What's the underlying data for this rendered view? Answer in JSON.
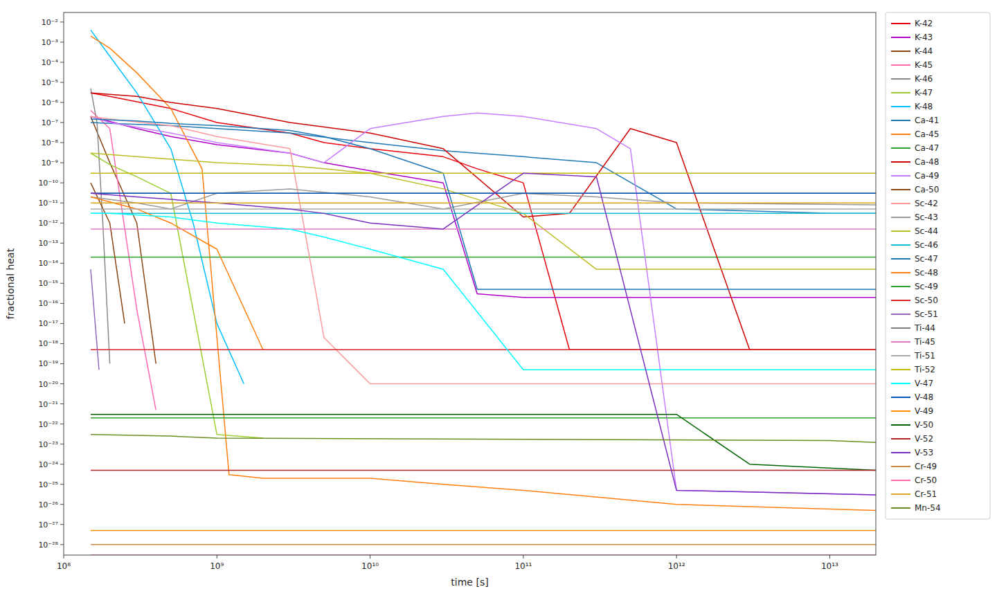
{
  "chart_data": {
    "type": "line",
    "xlabel": "time [s]",
    "ylabel": "fractional heat",
    "log": true,
    "grid": false,
    "legend": "right",
    "xlim": [
      100000000.0,
      20000000000000.0
    ],
    "ylim": [
      3e-29,
      0.03
    ],
    "xticks": [
      {
        "value": 100000000.0,
        "label": "10⁸"
      },
      {
        "value": 1000000000.0,
        "label": "10⁹"
      },
      {
        "value": 10000000000.0,
        "label": "10¹⁰"
      },
      {
        "value": 100000000000.0,
        "label": "10¹¹"
      },
      {
        "value": 1000000000000.0,
        "label": "10¹²"
      },
      {
        "value": 10000000000000.0,
        "label": "10¹³"
      }
    ],
    "yticks": [
      {
        "value": 1e-28,
        "label": "10⁻²⁸"
      },
      {
        "value": 1e-27,
        "label": "10⁻²⁷"
      },
      {
        "value": 1e-26,
        "label": "10⁻²⁶"
      },
      {
        "value": 1e-25,
        "label": "10⁻²⁵"
      },
      {
        "value": 1e-24,
        "label": "10⁻²⁴"
      },
      {
        "value": 1e-23,
        "label": "10⁻²³"
      },
      {
        "value": 1e-22,
        "label": "10⁻²²"
      },
      {
        "value": 1e-21,
        "label": "10⁻²¹"
      },
      {
        "value": 1e-20,
        "label": "10⁻²⁰"
      },
      {
        "value": 1e-19,
        "label": "10⁻¹⁹"
      },
      {
        "value": 1e-18,
        "label": "10⁻¹⁸"
      },
      {
        "value": 1e-17,
        "label": "10⁻¹⁷"
      },
      {
        "value": 1e-16,
        "label": "10⁻¹⁶"
      },
      {
        "value": 1e-15,
        "label": "10⁻¹⁵"
      },
      {
        "value": 1e-14,
        "label": "10⁻¹⁴"
      },
      {
        "value": 1e-13,
        "label": "10⁻¹³"
      },
      {
        "value": 1e-12,
        "label": "10⁻¹²"
      },
      {
        "value": 1e-11,
        "label": "10⁻¹¹"
      },
      {
        "value": 1e-10,
        "label": "10⁻¹⁰"
      },
      {
        "value": 1e-09,
        "label": "10⁻⁹"
      },
      {
        "value": 1e-08,
        "label": "10⁻⁸"
      },
      {
        "value": 1e-07,
        "label": "10⁻⁷"
      },
      {
        "value": 1e-06,
        "label": "10⁻⁶"
      },
      {
        "value": 1e-05,
        "label": "10⁻⁵"
      },
      {
        "value": 0.0001,
        "label": "10⁻⁴"
      },
      {
        "value": 0.001,
        "label": "10⁻³"
      },
      {
        "value": 0.01,
        "label": "10⁻²"
      }
    ],
    "series": [
      {
        "name": "K-42",
        "color": "#e8000d",
        "x": [
          150000000.0,
          200000000.0,
          500000000.0,
          1000000000.0,
          3000000000.0,
          5000000000.0,
          10000000000.0,
          30000000000.0,
          50000000000.0,
          100000000000.0,
          200000000000.0,
          20000000000000.0
        ],
        "values": [
          3e-06,
          2e-06,
          5e-07,
          1e-07,
          3e-08,
          1e-08,
          5e-09,
          2e-09,
          5e-10,
          1e-10,
          5e-19,
          5e-19
        ]
      },
      {
        "name": "K-43",
        "color": "#b000c8",
        "x": [
          150000000.0,
          300000000.0,
          500000000.0,
          1000000000.0,
          3000000000.0,
          5000000000.0,
          10000000000.0,
          30000000000.0,
          50000000000.0,
          100000000000.0,
          20000000000000.0
        ],
        "values": [
          2e-07,
          5e-08,
          2e-08,
          8e-09,
          3e-09,
          1e-09,
          4e-10,
          1e-10,
          3e-16,
          2e-16,
          2e-16
        ]
      },
      {
        "name": "K-44",
        "color": "#8b4513",
        "x": [
          150000000.0,
          200000000.0,
          300000000.0,
          400000000.0
        ],
        "values": [
          2e-07,
          1e-09,
          1e-12,
          1e-19
        ]
      },
      {
        "name": "K-45",
        "color": "#ff69b4",
        "x": [
          150000000.0,
          200000000.0,
          300000000.0,
          400000000.0
        ],
        "values": [
          4e-07,
          5e-08,
          5e-17,
          5e-22
        ]
      },
      {
        "name": "K-46",
        "color": "#888888",
        "x": [
          150000000.0,
          165000000.0,
          180000000.0,
          200000000.0
        ],
        "values": [
          5e-06,
          1e-07,
          1e-12,
          1e-19
        ]
      },
      {
        "name": "K-47",
        "color": "#9acd32",
        "x": [
          150000000.0,
          200000000.0,
          300000000.0,
          500000000.0,
          1000000000.0,
          2000000000.0
        ],
        "values": [
          3e-09,
          8e-10,
          2e-10,
          3e-11,
          3e-23,
          2e-23
        ]
      },
      {
        "name": "K-48",
        "color": "#00bfff",
        "x": [
          150000000.0,
          200000000.0,
          300000000.0,
          500000000.0,
          700000000.0,
          1000000000.0,
          1500000000.0
        ],
        "values": [
          0.004,
          0.0002,
          3e-06,
          5e-09,
          1e-12,
          1e-17,
          1e-20
        ]
      },
      {
        "name": "Ca-41",
        "color": "#1f77b4",
        "x": [
          150000000.0,
          200000000.0,
          500000000.0,
          1000000000.0,
          3000000000.0,
          10000000000.0,
          30000000000.0,
          100000000000.0,
          300000000000.0,
          1000000000000.0,
          3000000000000.0,
          10000000000000.0,
          20000000000000.0
        ],
        "values": [
          1e-07,
          9e-08,
          7e-08,
          5e-08,
          3e-08,
          1e-08,
          4e-09,
          2e-09,
          1e-09,
          5e-12,
          4e-12,
          3e-12,
          3e-12
        ]
      },
      {
        "name": "Ca-45",
        "color": "#ff7f0e",
        "x": [
          150000000.0,
          200000000.0,
          300000000.0,
          500000000.0,
          800000000.0,
          1200000000.0,
          2000000000.0,
          10000000000.0,
          30000000000.0,
          100000000000.0,
          1000000000000.0,
          20000000000000.0
        ],
        "values": [
          0.002,
          0.0005,
          3e-05,
          5e-07,
          5e-10,
          3e-25,
          2e-25,
          2e-25,
          1e-25,
          5e-26,
          1e-26,
          5e-27
        ]
      },
      {
        "name": "Ca-47",
        "color": "#2ca02c",
        "x": [
          150000000.0,
          20000000000000.0
        ],
        "values": [
          2e-14,
          2e-14
        ]
      },
      {
        "name": "Ca-48",
        "color": "#cc0000",
        "x": [
          150000000.0,
          300000000.0,
          500000000.0,
          1000000000.0,
          3000000000.0,
          10000000000.0,
          30000000000.0,
          100000000000.0,
          200000000000.0,
          500000000000.0,
          1000000000000.0,
          3000000000000.0,
          20000000000000.0
        ],
        "values": [
          3e-06,
          2e-06,
          1e-06,
          5e-07,
          1e-07,
          3e-08,
          5e-09,
          2e-12,
          3e-12,
          5e-08,
          1e-08,
          5e-19,
          5e-19
        ]
      },
      {
        "name": "Ca-49",
        "color": "#c77cff",
        "x": [
          150000000.0,
          200000000.0,
          500000000.0,
          1000000000.0,
          3000000000.0,
          5000000000.0,
          10000000000.0,
          30000000000.0,
          50000000000.0,
          100000000000.0,
          300000000000.0,
          500000000000.0,
          1000000000000.0,
          20000000000000.0
        ],
        "values": [
          2e-07,
          1e-07,
          3e-08,
          1e-08,
          3e-09,
          1e-09,
          5e-08,
          2e-07,
          3e-07,
          2e-07,
          5e-08,
          5e-09,
          5e-26,
          3e-26
        ]
      },
      {
        "name": "Ca-50",
        "color": "#8b4513",
        "x": [
          150000000.0,
          200000000.0,
          250000000.0
        ],
        "values": [
          1e-10,
          1e-12,
          1e-17
        ]
      },
      {
        "name": "Sc-42",
        "color": "#ff9999",
        "x": [
          150000000.0,
          200000000.0,
          500000000.0,
          1000000000.0,
          3000000000.0,
          5000000000.0,
          10000000000.0,
          20000000000000.0
        ],
        "values": [
          2e-07,
          1.5e-07,
          7e-08,
          2e-08,
          5e-09,
          2e-18,
          1e-20,
          1e-20
        ]
      },
      {
        "name": "Sc-43",
        "color": "#999999",
        "x": [
          150000000.0,
          300000000.0,
          500000000.0,
          1000000000.0,
          3000000000.0,
          10000000000.0,
          30000000000.0,
          100000000000.0,
          300000000000.0,
          1000000000000.0,
          20000000000000.0
        ],
        "values": [
          2e-11,
          1e-11,
          5e-12,
          3e-11,
          5e-11,
          2e-11,
          5e-12,
          3e-11,
          2e-11,
          1e-11,
          8e-12
        ]
      },
      {
        "name": "Sc-44",
        "color": "#bcbd22",
        "x": [
          150000000.0,
          300000000.0,
          500000000.0,
          1000000000.0,
          3000000000.0,
          5000000000.0,
          10000000000.0,
          30000000000.0,
          100000000000.0,
          300000000000.0,
          20000000000000.0
        ],
        "values": [
          3e-09,
          2e-09,
          1.5e-09,
          1e-09,
          7e-10,
          5e-10,
          3e-10,
          5e-11,
          3e-12,
          5e-15,
          5e-15
        ]
      },
      {
        "name": "Sc-46",
        "color": "#17becf",
        "x": [
          150000000.0,
          20000000000000.0
        ],
        "values": [
          3e-12,
          3e-12
        ]
      },
      {
        "name": "Sc-47",
        "color": "#1f77b4",
        "x": [
          150000000.0,
          300000000.0,
          500000000.0,
          1000000000.0,
          3000000000.0,
          5000000000.0,
          10000000000.0,
          30000000000.0,
          50000000000.0,
          20000000000000.0
        ],
        "values": [
          1.5e-07,
          1.2e-07,
          9e-08,
          7e-08,
          4e-08,
          2e-08,
          5e-09,
          3e-10,
          5e-16,
          5e-16
        ]
      },
      {
        "name": "Sc-48",
        "color": "#ff7f0e",
        "x": [
          150000000.0,
          300000000.0,
          500000000.0,
          1000000000.0,
          2000000000.0
        ],
        "values": [
          2e-11,
          5e-12,
          1e-12,
          5e-14,
          5e-19
        ]
      },
      {
        "name": "Sc-49",
        "color": "#2ca02c",
        "x": [
          150000000.0,
          20000000000000.0
        ],
        "values": [
          2e-22,
          2e-22
        ]
      },
      {
        "name": "Sc-50",
        "color": "#d62728",
        "x": [
          150000000.0,
          20000000000000.0
        ],
        "values": [
          5e-19,
          5e-19
        ]
      },
      {
        "name": "Sc-51",
        "color": "#9467bd",
        "x": [
          150000000.0,
          170000000.0
        ],
        "values": [
          5e-15,
          5e-20
        ]
      },
      {
        "name": "Ti-44",
        "color": "#7f7f7f",
        "x": [
          150000000.0,
          20000000000000.0
        ],
        "values": [
          3e-11,
          3e-11
        ]
      },
      {
        "name": "Ti-45",
        "color": "#e377c2",
        "x": [
          150000000.0,
          20000000000000.0
        ],
        "values": [
          5e-13,
          5e-13
        ]
      },
      {
        "name": "Ti-51",
        "color": "#aaaaaa",
        "x": [
          150000000.0,
          20000000000000.0
        ],
        "values": [
          5e-12,
          5e-12
        ]
      },
      {
        "name": "Ti-52",
        "color": "#c5b800",
        "x": [
          150000000.0,
          20000000000000.0
        ],
        "values": [
          3e-10,
          3e-10
        ]
      },
      {
        "name": "V-47",
        "color": "#00ffff",
        "x": [
          150000000.0,
          200000000.0,
          500000000.0,
          1000000000.0,
          3000000000.0,
          5000000000.0,
          10000000000.0,
          30000000000.0,
          100000000000.0,
          20000000000000.0
        ],
        "values": [
          3e-12,
          3e-12,
          2e-12,
          1e-12,
          5e-13,
          2e-13,
          5e-14,
          5e-15,
          5e-20,
          5e-20
        ]
      },
      {
        "name": "V-48",
        "color": "#0055bb",
        "x": [
          150000000.0,
          20000000000000.0
        ],
        "values": [
          3e-11,
          3e-11
        ]
      },
      {
        "name": "V-49",
        "color": "#ff8c00",
        "x": [
          150000000.0,
          20000000000000.0
        ],
        "values": [
          5e-28,
          5e-28
        ]
      },
      {
        "name": "V-50",
        "color": "#006400",
        "x": [
          150000000.0,
          1000000000000.0,
          3000000000000.0,
          20000000000000.0
        ],
        "values": [
          3e-22,
          3e-22,
          1e-24,
          5e-25
        ]
      },
      {
        "name": "V-52",
        "color": "#b22222",
        "x": [
          150000000.0,
          20000000000000.0
        ],
        "values": [
          5e-25,
          5e-25
        ]
      },
      {
        "name": "V-53",
        "color": "#7b2fbe",
        "x": [
          150000000.0,
          300000000.0,
          500000000.0,
          1000000000.0,
          3000000000.0,
          5000000000.0,
          10000000000.0,
          30000000000.0,
          100000000000.0,
          300000000000.0,
          1000000000000.0,
          20000000000000.0
        ],
        "values": [
          3e-11,
          2e-11,
          1.5e-11,
          1e-11,
          5e-12,
          3e-12,
          1e-12,
          5e-13,
          3e-10,
          2e-10,
          5e-26,
          3e-26
        ]
      },
      {
        "name": "Cr-49",
        "color": "#cd853f",
        "x": [
          150000000.0,
          20000000000000.0
        ],
        "values": [
          1e-28,
          1e-28
        ]
      },
      {
        "name": "Cr-50",
        "color": "#ff69b4",
        "x": [
          150000000.0,
          20000000000000.0
        ],
        "values": [
          3e-29,
          3e-29
        ]
      },
      {
        "name": "Cr-51",
        "color": "#daa520",
        "x": [
          150000000.0,
          20000000000000.0
        ],
        "values": [
          1e-11,
          1e-11
        ]
      },
      {
        "name": "Mn-54",
        "color": "#6b8e23",
        "x": [
          150000000.0,
          500000000.0,
          1000000000.0,
          10000000000000.0,
          20000000000000.0
        ],
        "values": [
          3e-23,
          2.5e-23,
          2e-23,
          1.5e-23,
          1.2e-23
        ]
      }
    ]
  }
}
